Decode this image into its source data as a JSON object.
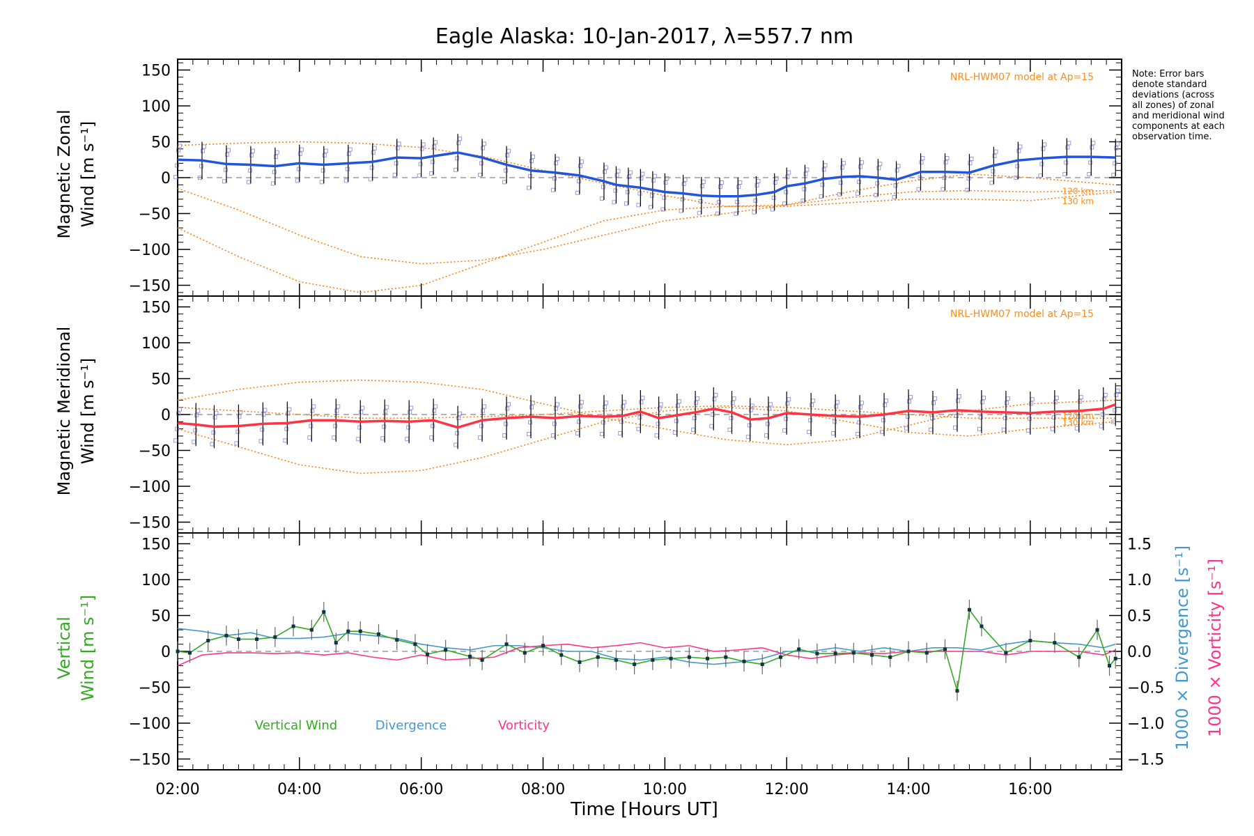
{
  "chart_data": [
    {
      "type": "line",
      "title": "Eagle Alaska: 10-Jan-2017, λ=557.7 nm",
      "ylabel": [
        "Magnetic Zonal",
        "Wind [m s⁻¹]"
      ],
      "ylim": [
        -165,
        165
      ],
      "yticks": [
        150,
        100,
        50,
        0,
        -50,
        -100,
        -150
      ],
      "model_label": "NRL-HWM07 model at Ap=15",
      "model_height_labels": [
        "120 km",
        "130 km"
      ],
      "colors": {
        "mean": "#2255dd",
        "mean_light": "#4499dd",
        "model": "#ff7f0e",
        "samples": "#9999dd",
        "errorbar": "#000000"
      },
      "series": [
        {
          "name": "mean",
          "x": [
            2.0,
            2.4,
            2.8,
            3.2,
            3.6,
            4.0,
            4.4,
            4.8,
            5.2,
            5.6,
            6.0,
            6.2,
            6.6,
            7.0,
            7.4,
            7.8,
            8.2,
            8.6,
            9.0,
            9.2,
            9.4,
            9.6,
            9.8,
            10.0,
            10.3,
            10.6,
            10.9,
            11.2,
            11.5,
            11.8,
            12.0,
            12.3,
            12.6,
            12.9,
            13.2,
            13.5,
            13.8,
            14.2,
            14.6,
            15.0,
            15.4,
            15.8,
            16.2,
            16.6,
            17.0,
            17.4
          ],
          "y": [
            25,
            24,
            19,
            18,
            16,
            20,
            18,
            20,
            22,
            28,
            27,
            30,
            35,
            28,
            18,
            10,
            7,
            3,
            -5,
            -10,
            -12,
            -14,
            -17,
            -20,
            -22,
            -25,
            -26,
            -26,
            -24,
            -20,
            -12,
            -8,
            -2,
            1,
            2,
            0,
            -3,
            8,
            8,
            7,
            17,
            24,
            27,
            29,
            29,
            28
          ]
        },
        {
          "name": "model_high",
          "x": [
            2.0,
            3.0,
            4.0,
            5.0,
            6.0,
            7.0,
            8.0,
            9.0,
            10.0,
            11.0,
            12.0,
            13.0,
            14.0,
            15.0,
            16.0,
            17.4
          ],
          "y": [
            45,
            48,
            50,
            48,
            42,
            30,
            10,
            -8,
            -25,
            -40,
            -38,
            -20,
            -5,
            5,
            0,
            -10
          ]
        },
        {
          "name": "model_120km",
          "x": [
            2.0,
            3.0,
            4.0,
            5.0,
            6.0,
            7.0,
            8.0,
            9.0,
            10.0,
            11.0,
            12.0,
            13.0,
            14.0,
            15.0,
            16.0,
            17.4
          ],
          "y": [
            -15,
            -45,
            -80,
            -110,
            -120,
            -115,
            -100,
            -80,
            -60,
            -50,
            -38,
            -28,
            -20,
            -18,
            -20,
            -18
          ]
        },
        {
          "name": "model_130km",
          "x": [
            2.0,
            3.0,
            4.0,
            5.0,
            6.0,
            7.0,
            8.0,
            9.0,
            10.0,
            11.0,
            12.0,
            13.0,
            14.0,
            15.0,
            16.0,
            17.4
          ],
          "y": [
            -70,
            -110,
            -145,
            -160,
            -150,
            -120,
            -90,
            -60,
            -45,
            -40,
            -40,
            -35,
            -30,
            -30,
            -32,
            -20
          ]
        }
      ]
    },
    {
      "type": "line",
      "ylabel": [
        "Magnetic Meridional",
        "Wind [m s⁻¹]"
      ],
      "ylim": [
        -165,
        165
      ],
      "yticks": [
        150,
        100,
        50,
        0,
        -50,
        -100,
        -150
      ],
      "model_label": "NRL-HWM07 model at Ap=15",
      "model_height_labels": [
        "120 km",
        "130 km"
      ],
      "colors": {
        "mean": "#ff3344",
        "model": "#ff7f0e",
        "samples": "#9999dd",
        "errorbar": "#000000"
      },
      "series": [
        {
          "name": "mean",
          "x": [
            2.0,
            2.3,
            2.6,
            3.0,
            3.4,
            3.8,
            4.2,
            4.6,
            5.0,
            5.4,
            5.8,
            6.2,
            6.6,
            7.0,
            7.4,
            7.8,
            8.2,
            8.6,
            9.0,
            9.3,
            9.6,
            9.9,
            10.2,
            10.5,
            10.8,
            11.1,
            11.4,
            11.7,
            12.0,
            12.4,
            12.8,
            13.2,
            13.6,
            14.0,
            14.4,
            14.8,
            15.2,
            15.6,
            16.0,
            16.4,
            16.8,
            17.2,
            17.4
          ],
          "y": [
            -12,
            -14,
            -17,
            -16,
            -13,
            -12,
            -8,
            -8,
            -10,
            -9,
            -10,
            -8,
            -18,
            -8,
            -5,
            -3,
            -5,
            -2,
            -3,
            -2,
            4,
            -5,
            -1,
            3,
            8,
            3,
            -7,
            -5,
            2,
            0,
            -2,
            -3,
            0,
            5,
            3,
            6,
            4,
            3,
            2,
            4,
            5,
            8,
            14
          ]
        },
        {
          "name": "model_high",
          "x": [
            2.0,
            3.0,
            4.0,
            5.0,
            6.0,
            7.0,
            8.0,
            9.0,
            10.0,
            11.0,
            12.0,
            13.0,
            14.0,
            15.0,
            16.0,
            17.4
          ],
          "y": [
            20,
            35,
            45,
            48,
            45,
            35,
            15,
            -5,
            -20,
            -35,
            -42,
            -35,
            -15,
            5,
            15,
            20
          ]
        },
        {
          "name": "model_120km",
          "x": [
            2.0,
            3.0,
            4.0,
            5.0,
            6.0,
            7.0,
            8.0,
            9.0,
            10.0,
            11.0,
            12.0,
            13.0,
            14.0,
            15.0,
            16.0,
            17.4
          ],
          "y": [
            -20,
            -45,
            -70,
            -82,
            -78,
            -60,
            -35,
            -10,
            5,
            10,
            5,
            -10,
            -25,
            -30,
            -20,
            -10
          ]
        },
        {
          "name": "model_130km",
          "x": [
            2.0,
            3.0,
            4.0,
            5.0,
            6.0,
            7.0,
            8.0,
            9.0,
            10.0,
            11.0,
            12.0,
            13.0,
            14.0,
            15.0,
            16.0,
            17.4
          ],
          "y": [
            10,
            5,
            0,
            -5,
            -5,
            -3,
            0,
            5,
            10,
            12,
            10,
            5,
            0,
            -5,
            -5,
            -5
          ]
        }
      ]
    },
    {
      "type": "line",
      "ylabel": [
        "Vertical",
        "Wind [m s⁻¹]"
      ],
      "ylim": [
        -165,
        165
      ],
      "yticks": [
        150,
        100,
        50,
        0,
        -50,
        -100,
        -150
      ],
      "y2label_divergence": "1000 × Divergence [s⁻¹]",
      "y2label_vorticity": "1000 × Vorticity [s⁻¹]",
      "y2lim": [
        -1.65,
        1.65
      ],
      "y2ticks": [
        "1.5",
        "1.0",
        "0.5",
        "0.0",
        "−0.5",
        "−1.0",
        "−1.5"
      ],
      "xlabel": "Time [Hours UT]",
      "xlim": [
        2.0,
        17.5
      ],
      "xticks": [
        "02:00",
        "04:00",
        "06:00",
        "08:00",
        "10:00",
        "12:00",
        "14:00",
        "16:00"
      ],
      "legend": [
        "Vertical Wind",
        "Divergence",
        "Vorticity"
      ],
      "colors": {
        "vertical": "#33aa22",
        "divergence": "#4499cc",
        "vorticity": "#ff3388"
      },
      "series": [
        {
          "name": "Vertical Wind",
          "x": [
            2.0,
            2.2,
            2.5,
            2.8,
            3.0,
            3.3,
            3.6,
            3.9,
            4.2,
            4.4,
            4.6,
            4.8,
            5.0,
            5.3,
            5.6,
            5.9,
            6.1,
            6.4,
            6.8,
            7.0,
            7.4,
            7.7,
            8.0,
            8.3,
            8.6,
            8.9,
            9.2,
            9.5,
            9.8,
            10.1,
            10.4,
            10.7,
            11.0,
            11.3,
            11.6,
            11.9,
            12.2,
            12.5,
            12.8,
            13.1,
            13.4,
            13.7,
            14.0,
            14.3,
            14.6,
            14.8,
            15.0,
            15.2,
            15.6,
            16.0,
            16.4,
            16.8,
            17.1,
            17.3,
            17.4
          ],
          "y": [
            0,
            -2,
            15,
            22,
            17,
            17,
            20,
            35,
            30,
            55,
            12,
            28,
            28,
            24,
            16,
            10,
            -4,
            2,
            -7,
            -12,
            10,
            -2,
            8,
            -5,
            -15,
            -8,
            -12,
            -18,
            -12,
            -10,
            -8,
            -10,
            -8,
            -14,
            -18,
            -8,
            3,
            -3,
            -3,
            -2,
            -5,
            -8,
            0,
            -2,
            3,
            -55,
            58,
            35,
            -2,
            15,
            12,
            -8,
            30,
            -20,
            -10
          ]
        },
        {
          "name": "Divergence",
          "x": [
            2.0,
            2.4,
            2.8,
            3.2,
            3.6,
            4.0,
            4.4,
            4.8,
            5.2,
            5.6,
            6.0,
            6.4,
            6.8,
            7.2,
            7.6,
            8.0,
            8.4,
            8.8,
            9.2,
            9.6,
            10.0,
            10.4,
            10.8,
            11.2,
            11.6,
            12.0,
            12.4,
            12.8,
            13.2,
            13.6,
            14.0,
            14.4,
            14.8,
            15.2,
            15.6,
            16.0,
            16.4,
            16.8,
            17.2,
            17.4
          ],
          "y": [
            0.32,
            0.28,
            0.22,
            0.26,
            0.18,
            0.18,
            0.2,
            0.25,
            0.22,
            0.18,
            0.1,
            0.05,
            0.02,
            0.08,
            0.08,
            0.05,
            0.0,
            0.0,
            -0.1,
            -0.12,
            -0.08,
            -0.15,
            -0.18,
            -0.15,
            -0.1,
            0.0,
            0.0,
            0.05,
            0.0,
            0.05,
            0.0,
            0.05,
            0.05,
            0.02,
            0.1,
            0.15,
            0.12,
            0.1,
            0.05,
            0.1
          ]
        },
        {
          "name": "Vorticity",
          "x": [
            2.0,
            2.4,
            2.8,
            3.2,
            3.6,
            4.0,
            4.4,
            4.8,
            5.2,
            5.6,
            6.0,
            6.4,
            6.8,
            7.2,
            7.6,
            8.0,
            8.4,
            8.8,
            9.2,
            9.6,
            10.0,
            10.4,
            10.8,
            11.2,
            11.6,
            12.0,
            12.4,
            12.8,
            13.2,
            13.6,
            14.0,
            14.4,
            14.8,
            15.2,
            15.6,
            16.0,
            16.4,
            16.8,
            17.2,
            17.4
          ],
          "y": [
            -0.2,
            -0.05,
            -0.02,
            -0.02,
            -0.03,
            -0.02,
            -0.05,
            -0.02,
            -0.08,
            -0.12,
            -0.05,
            -0.12,
            -0.1,
            -0.08,
            0.05,
            0.08,
            0.1,
            0.05,
            0.08,
            0.12,
            0.05,
            0.08,
            0.0,
            0.02,
            0.05,
            -0.05,
            -0.1,
            -0.05,
            -0.02,
            -0.03,
            0.0,
            0.0,
            0.0,
            0.0,
            -0.05,
            0.0,
            0.0,
            0.0,
            -0.05,
            0.02
          ]
        }
      ]
    }
  ],
  "note": "Note: Error bars denote standard deviations (across all zones) of zonal and meridional wind components at each observation time."
}
